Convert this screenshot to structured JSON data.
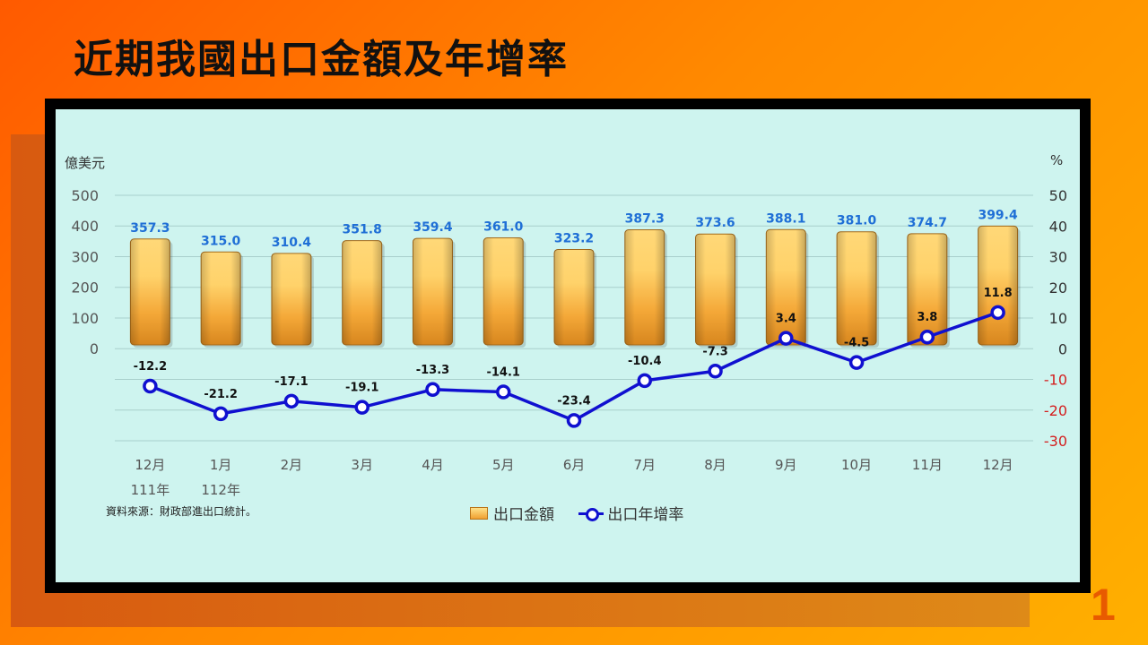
{
  "slide": {
    "title": "近期我國出口金額及年增率",
    "page_number": "1",
    "source_note": "資料來源：財政部進出口統計。"
  },
  "chart_data": {
    "type": "bar",
    "title": "",
    "categories": [
      "12月",
      "1月",
      "2月",
      "3月",
      "4月",
      "5月",
      "6月",
      "7月",
      "8月",
      "9月",
      "10月",
      "11月",
      "12月"
    ],
    "year_labels": [
      {
        "index": 0,
        "label": "111年"
      },
      {
        "index": 1,
        "label": "112年"
      }
    ],
    "ylabel_left": "億美元",
    "ylabel_right": "%",
    "ylim_left": [
      0,
      500
    ],
    "left_ticks": [
      "0",
      "100",
      "200",
      "300",
      "400",
      "500"
    ],
    "ylim_right": [
      -30,
      50
    ],
    "right_ticks": [
      "50",
      "40",
      "30",
      "20",
      "10",
      "0",
      "-10",
      "-20",
      "-30"
    ],
    "grid": true,
    "legend_position": "bottom",
    "series": [
      {
        "name": "出口金額",
        "type": "bar",
        "axis": "left",
        "values": [
          357.3,
          315.0,
          310.4,
          351.8,
          359.4,
          361.0,
          323.2,
          387.3,
          373.6,
          388.1,
          381.0,
          374.7,
          399.4
        ],
        "labels": [
          "357.3",
          "315.0",
          "310.4",
          "351.8",
          "359.4",
          "361.0",
          "323.2",
          "387.3",
          "373.6",
          "388.1",
          "381.0",
          "374.7",
          "399.4"
        ],
        "color": "#f0a030",
        "label_color": "#1f6fd6"
      },
      {
        "name": "出口年增率",
        "type": "line",
        "axis": "right",
        "values": [
          -12.2,
          -21.2,
          -17.1,
          -19.1,
          -13.3,
          -14.1,
          -23.4,
          -10.4,
          -7.3,
          3.4,
          -4.5,
          3.8,
          11.8
        ],
        "labels": [
          "-12.2",
          "-21.2",
          "-17.1",
          "-19.1",
          "-13.3",
          "-14.1",
          "-23.4",
          "-10.4",
          "-7.3",
          "3.4",
          "-4.5",
          "3.8",
          "11.8"
        ],
        "color": "#1010d0"
      }
    ],
    "colors": {
      "right_axis_positive": "#333333",
      "right_axis_negative": "#d42020",
      "left_axis": "#555555"
    }
  }
}
